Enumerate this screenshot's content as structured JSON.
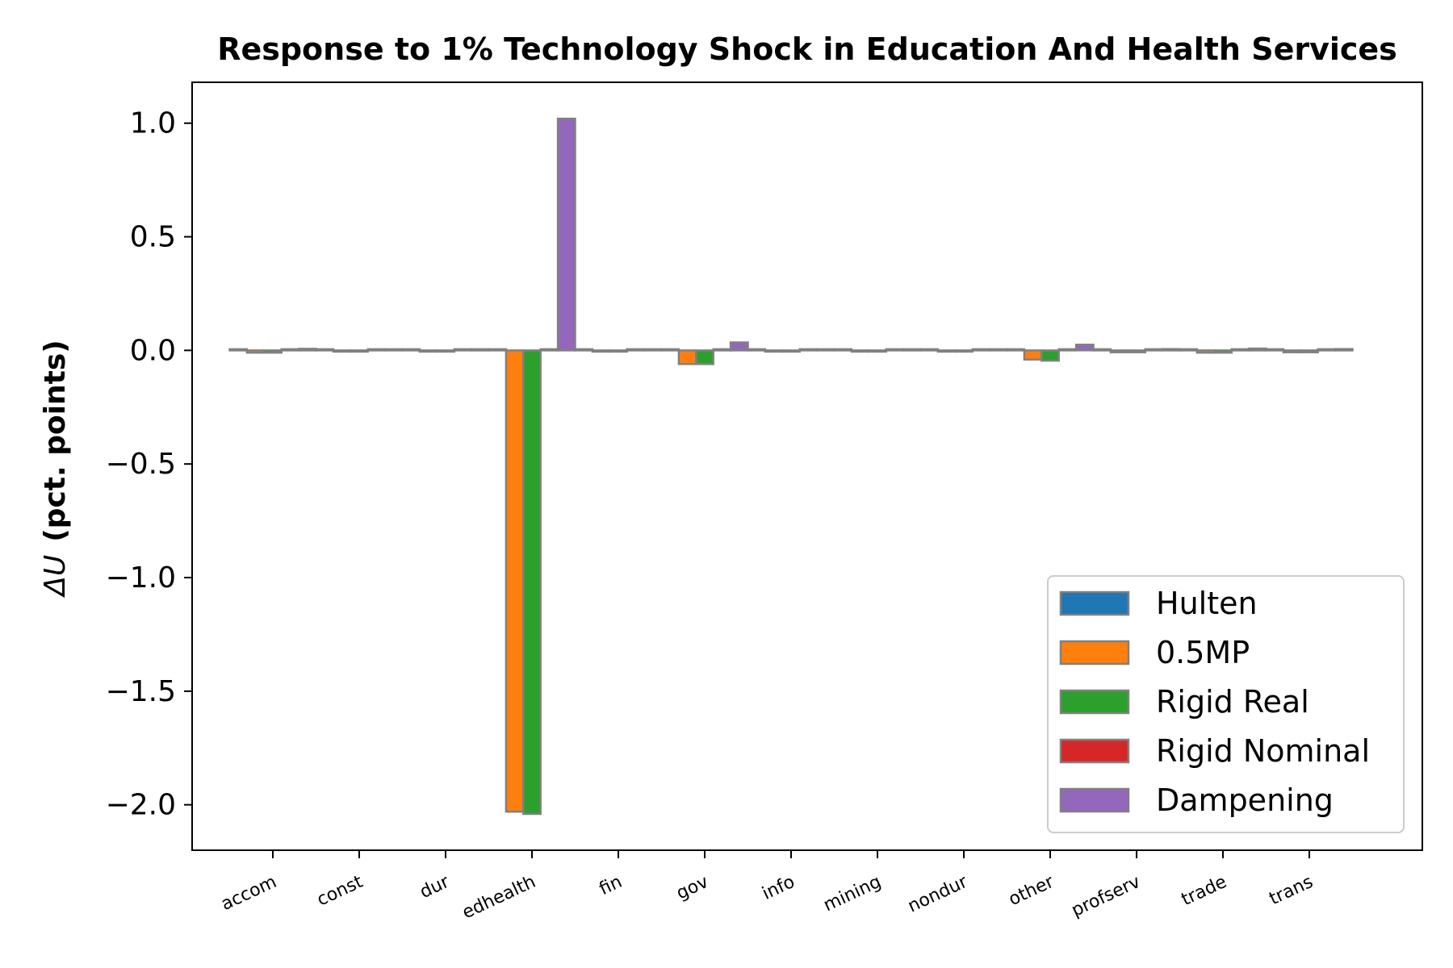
{
  "colors": {
    "Hulten": "#1f77b4",
    "0.5MP": "#ff7f0e",
    "Rigid Real": "#2ca02c",
    "Rigid Nominal": "#d62728",
    "Dampening": "#9467bd",
    "bar_edge": "#808080"
  },
  "chart_data": {
    "type": "bar",
    "title": "Response to 1% Technology Shock in Education And Health Services",
    "ylabel_symbol": "ΔU",
    "ylabel": "(pct. points)",
    "xlabel": "",
    "ylim": [
      -2.2,
      1.18
    ],
    "yticks": [
      1.0,
      0.5,
      0.0,
      -0.5,
      -1.0,
      -1.5,
      -2.0
    ],
    "ytick_labels": [
      "1.0",
      "0.5",
      "0.0",
      "−0.5",
      "−1.0",
      "−1.5",
      "−2.0"
    ],
    "categories": [
      "accom",
      "const",
      "dur",
      "edhealth",
      "fin",
      "gov",
      "info",
      "mining",
      "nondur",
      "other",
      "profserv",
      "trade",
      "trans"
    ],
    "legend_position": "lower right",
    "grid": false,
    "series": [
      {
        "name": "Hulten",
        "values": [
          0.0,
          0.0,
          0.0,
          0.0,
          0.0,
          0.0,
          0.0,
          0.0,
          0.0,
          0.0,
          0.0,
          0.0,
          0.0
        ]
      },
      {
        "name": "0.5MP",
        "values": [
          -0.01,
          -0.005,
          -0.005,
          -2.03,
          -0.005,
          -0.06,
          -0.005,
          -0.003,
          -0.003,
          -0.04,
          -0.008,
          -0.01,
          -0.008
        ]
      },
      {
        "name": "Rigid Real",
        "values": [
          -0.01,
          -0.005,
          -0.005,
          -2.04,
          -0.005,
          -0.06,
          -0.005,
          -0.003,
          -0.003,
          -0.045,
          -0.008,
          -0.01,
          -0.008
        ]
      },
      {
        "name": "Rigid Nominal",
        "values": [
          0.0,
          0.0,
          0.0,
          0.0,
          0.0,
          0.0,
          0.0,
          0.0,
          0.0,
          0.0,
          0.0,
          0.0,
          0.0
        ]
      },
      {
        "name": "Dampening",
        "values": [
          0.007,
          0.004,
          0.005,
          1.02,
          0.005,
          0.035,
          0.004,
          0.003,
          0.003,
          0.025,
          0.006,
          0.008,
          0.006
        ]
      }
    ]
  }
}
